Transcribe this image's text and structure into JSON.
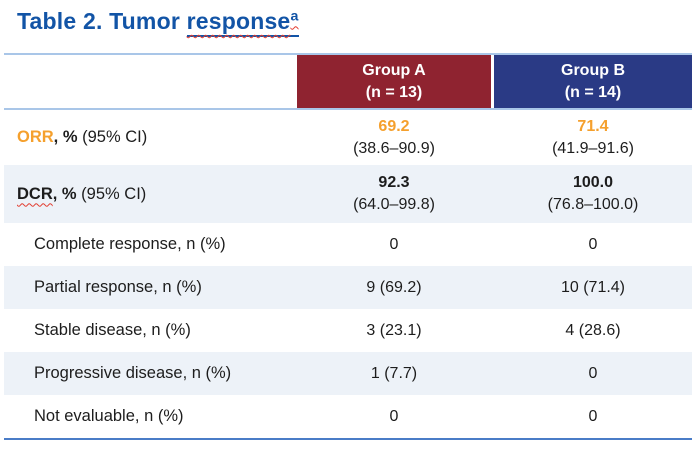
{
  "title": {
    "prefix": "Table 2. Tumor ",
    "underlined": "response",
    "superscript": "a"
  },
  "colors": {
    "title_blue": "#1254a6",
    "group_a_red": "#8f2330",
    "group_b_blue": "#2a3a85",
    "highlight_orange": "#f5a02d",
    "row_stripe": "#edf2f8",
    "rule_light_blue": "#a9c6e8",
    "rule_bottom_blue": "#4a7cc7",
    "spellcheck_red": "#e23b2e"
  },
  "table": {
    "columns": [
      {
        "label": "Group A",
        "n": "(n = 13)"
      },
      {
        "label": "Group B",
        "n": "(n = 14)"
      }
    ],
    "rows": [
      {
        "label_name": "ORR",
        "label_mid": ", %",
        "label_rest": " (95% CI)",
        "groupA": {
          "value": "69.2",
          "ci": "(38.6–90.9)"
        },
        "groupB": {
          "value": "71.4",
          "ci": "(41.9–91.6)"
        }
      },
      {
        "label_name": "DCR",
        "label_mid": ", %",
        "label_rest": " (95% CI)",
        "groupA": {
          "value": "92.3",
          "ci": "(64.0–99.8)"
        },
        "groupB": {
          "value": "100.0",
          "ci": "(76.8–100.0)"
        }
      },
      {
        "label": "Complete response, n (%)",
        "groupA": {
          "value": "0"
        },
        "groupB": {
          "value": "0"
        }
      },
      {
        "label": "Partial response, n (%)",
        "groupA": {
          "value": "9 (69.2)"
        },
        "groupB": {
          "value": "10 (71.4)"
        }
      },
      {
        "label": "Stable disease, n (%)",
        "groupA": {
          "value": "3 (23.1)"
        },
        "groupB": {
          "value": "4 (28.6)"
        }
      },
      {
        "label": "Progressive disease, n (%)",
        "groupA": {
          "value": "1 (7.7)"
        },
        "groupB": {
          "value": "0"
        }
      },
      {
        "label": "Not evaluable, n (%)",
        "groupA": {
          "value": "0"
        },
        "groupB": {
          "value": "0"
        }
      }
    ]
  }
}
